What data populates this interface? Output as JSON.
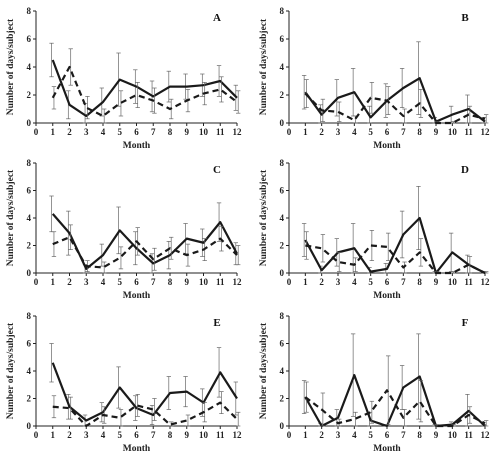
{
  "chart_data": [
    {
      "type": "line",
      "label": "A",
      "xlabel": "Month",
      "ylabel": "Number of days/subject",
      "xlim": [
        0,
        12
      ],
      "ylim": [
        0,
        8
      ],
      "x_ticks": [
        0,
        1,
        2,
        3,
        4,
        5,
        6,
        7,
        8,
        9,
        10,
        11,
        12
      ],
      "y_ticks": [
        0,
        2,
        4,
        6,
        8
      ],
      "x": [
        1,
        2,
        3,
        4,
        5,
        6,
        7,
        8,
        9,
        10,
        11,
        12
      ],
      "series": [
        {
          "style": "solid",
          "values": [
            4.5,
            1.3,
            0.5,
            1.5,
            3.1,
            2.6,
            1.9,
            2.6,
            2.6,
            2.7,
            3.0,
            1.8
          ],
          "err": [
            1.2,
            1.0,
            0.9,
            1.0,
            1.9,
            1.2,
            1.1,
            1.1,
            0.9,
            0.8,
            1.1,
            0.9
          ]
        },
        {
          "style": "dashed",
          "values": [
            1.8,
            4.0,
            1.1,
            0.5,
            1.4,
            2.0,
            1.6,
            1.0,
            1.6,
            2.1,
            2.4,
            1.5
          ],
          "err": [
            0.8,
            1.3,
            0.8,
            0.5,
            0.9,
            0.9,
            0.9,
            0.7,
            0.8,
            0.8,
            0.9,
            0.8
          ]
        }
      ]
    },
    {
      "type": "line",
      "label": "B",
      "xlabel": "Month",
      "ylabel": "Number of days/subject",
      "xlim": [
        0,
        12
      ],
      "ylim": [
        0,
        8
      ],
      "x_ticks": [
        0,
        1,
        2,
        3,
        4,
        5,
        6,
        7,
        8,
        9,
        10,
        11,
        12
      ],
      "y_ticks": [
        0,
        2,
        4,
        6,
        8
      ],
      "x": [
        1,
        2,
        3,
        4,
        5,
        6,
        7,
        8,
        9,
        10,
        11,
        12
      ],
      "series": [
        {
          "style": "solid",
          "values": [
            2.2,
            0.6,
            1.8,
            2.2,
            0.4,
            1.6,
            2.5,
            3.2,
            0.1,
            0.6,
            1.0,
            0.1
          ],
          "err": [
            1.2,
            0.7,
            1.3,
            1.7,
            0.8,
            1.2,
            1.4,
            2.6,
            0.3,
            0.6,
            1.0,
            0.3
          ]
        },
        {
          "style": "dashed",
          "values": [
            2.1,
            0.9,
            0.8,
            0.2,
            1.8,
            1.6,
            0.5,
            1.4,
            0.0,
            0.0,
            0.6,
            0.3
          ],
          "err": [
            1.0,
            0.8,
            0.7,
            0.3,
            1.1,
            1.0,
            0.5,
            1.0,
            0.1,
            0.1,
            0.6,
            0.3
          ]
        }
      ]
    },
    {
      "type": "line",
      "label": "C",
      "xlabel": "Month",
      "ylabel": "Number of days/subject",
      "xlim": [
        0,
        12
      ],
      "ylim": [
        0,
        8
      ],
      "x_ticks": [
        0,
        1,
        2,
        3,
        4,
        5,
        6,
        7,
        8,
        9,
        10,
        11,
        12
      ],
      "y_ticks": [
        0,
        2,
        4,
        6,
        8
      ],
      "x": [
        1,
        2,
        3,
        4,
        5,
        6,
        7,
        8,
        9,
        10,
        11,
        12
      ],
      "series": [
        {
          "style": "solid",
          "values": [
            4.3,
            2.9,
            0.3,
            1.3,
            3.1,
            1.8,
            0.7,
            1.3,
            2.5,
            2.2,
            3.7,
            1.4
          ],
          "err": [
            1.3,
            1.6,
            0.3,
            0.8,
            1.7,
            1.2,
            0.7,
            1.0,
            1.1,
            1.0,
            1.4,
            0.8
          ]
        },
        {
          "style": "dashed",
          "values": [
            2.1,
            2.6,
            0.5,
            0.4,
            1.1,
            2.3,
            1.0,
            1.8,
            1.3,
            1.7,
            2.5,
            1.3
          ],
          "err": [
            0.9,
            0.9,
            0.4,
            0.4,
            0.8,
            1.0,
            0.8,
            0.8,
            0.8,
            0.8,
            0.9,
            0.7
          ]
        }
      ]
    },
    {
      "type": "line",
      "label": "D",
      "xlabel": "Month",
      "ylabel": "Number of days/subject",
      "xlim": [
        0,
        12
      ],
      "ylim": [
        0,
        8
      ],
      "x_ticks": [
        0,
        1,
        2,
        3,
        4,
        5,
        6,
        7,
        8,
        9,
        10,
        11,
        12
      ],
      "y_ticks": [
        0,
        2,
        4,
        6,
        8
      ],
      "x": [
        1,
        2,
        3,
        4,
        5,
        6,
        7,
        8,
        9,
        10,
        11,
        12
      ],
      "series": [
        {
          "style": "solid",
          "values": [
            2.4,
            0.2,
            1.5,
            1.8,
            0.1,
            0.3,
            2.8,
            4.0,
            0.0,
            1.5,
            0.6,
            0.0
          ],
          "err": [
            1.2,
            0.3,
            1.0,
            1.8,
            0.3,
            0.4,
            1.7,
            2.3,
            0.1,
            1.4,
            0.7,
            0.1
          ]
        },
        {
          "style": "dashed",
          "values": [
            2.0,
            1.8,
            0.8,
            0.6,
            2.0,
            1.9,
            0.4,
            1.5,
            0.0,
            0.0,
            0.6,
            0.0
          ],
          "err": [
            1.0,
            1.0,
            0.7,
            0.5,
            1.1,
            1.0,
            0.4,
            1.0,
            0.1,
            0.1,
            0.6,
            0.1
          ]
        }
      ]
    },
    {
      "type": "line",
      "label": "E",
      "xlabel": "Month",
      "ylabel": "Number of days/subject",
      "xlim": [
        0,
        12
      ],
      "ylim": [
        0,
        8
      ],
      "x_ticks": [
        0,
        1,
        2,
        3,
        4,
        5,
        6,
        7,
        8,
        9,
        10,
        11,
        12
      ],
      "y_ticks": [
        0,
        2,
        4,
        6,
        8
      ],
      "x": [
        1,
        2,
        3,
        4,
        5,
        6,
        7,
        8,
        9,
        10,
        11,
        12
      ],
      "series": [
        {
          "style": "solid",
          "values": [
            4.6,
            1.4,
            0.4,
            1.0,
            2.8,
            1.3,
            0.8,
            2.4,
            2.5,
            1.7,
            3.9,
            2.0
          ],
          "err": [
            1.4,
            0.9,
            0.4,
            0.7,
            1.5,
            0.9,
            0.7,
            1.2,
            1.1,
            1.0,
            1.8,
            1.2
          ]
        },
        {
          "style": "dashed",
          "values": [
            1.4,
            1.3,
            0.0,
            0.8,
            0.6,
            1.5,
            1.2,
            0.1,
            0.4,
            1.0,
            1.7,
            0.5
          ],
          "err": [
            0.8,
            0.8,
            0.1,
            0.6,
            0.6,
            0.8,
            0.8,
            0.2,
            0.4,
            0.7,
            0.8,
            0.5
          ]
        }
      ]
    },
    {
      "type": "line",
      "label": "F",
      "xlabel": "Month",
      "ylabel": "Number of days/subject",
      "xlim": [
        0,
        12
      ],
      "ylim": [
        0,
        8
      ],
      "x_ticks": [
        0,
        1,
        2,
        3,
        4,
        5,
        6,
        7,
        8,
        9,
        10,
        11,
        12
      ],
      "y_ticks": [
        0,
        2,
        4,
        6,
        8
      ],
      "x": [
        1,
        2,
        3,
        4,
        5,
        6,
        7,
        8,
        9,
        10,
        11,
        12
      ],
      "series": [
        {
          "style": "solid",
          "values": [
            2.1,
            0.0,
            0.6,
            3.7,
            0.4,
            0.0,
            2.8,
            3.6,
            0.0,
            0.1,
            1.1,
            0.0
          ],
          "err": [
            1.2,
            0.2,
            0.6,
            3.0,
            0.6,
            0.1,
            1.6,
            3.1,
            0.1,
            0.2,
            1.2,
            0.1
          ]
        },
        {
          "style": "dashed",
          "values": [
            2.1,
            1.2,
            0.2,
            0.5,
            1.0,
            2.6,
            0.6,
            1.8,
            0.0,
            0.0,
            0.8,
            0.2
          ],
          "err": [
            1.1,
            1.2,
            0.3,
            0.5,
            0.8,
            2.5,
            0.6,
            1.5,
            0.1,
            0.1,
            0.6,
            0.2
          ]
        }
      ]
    }
  ]
}
